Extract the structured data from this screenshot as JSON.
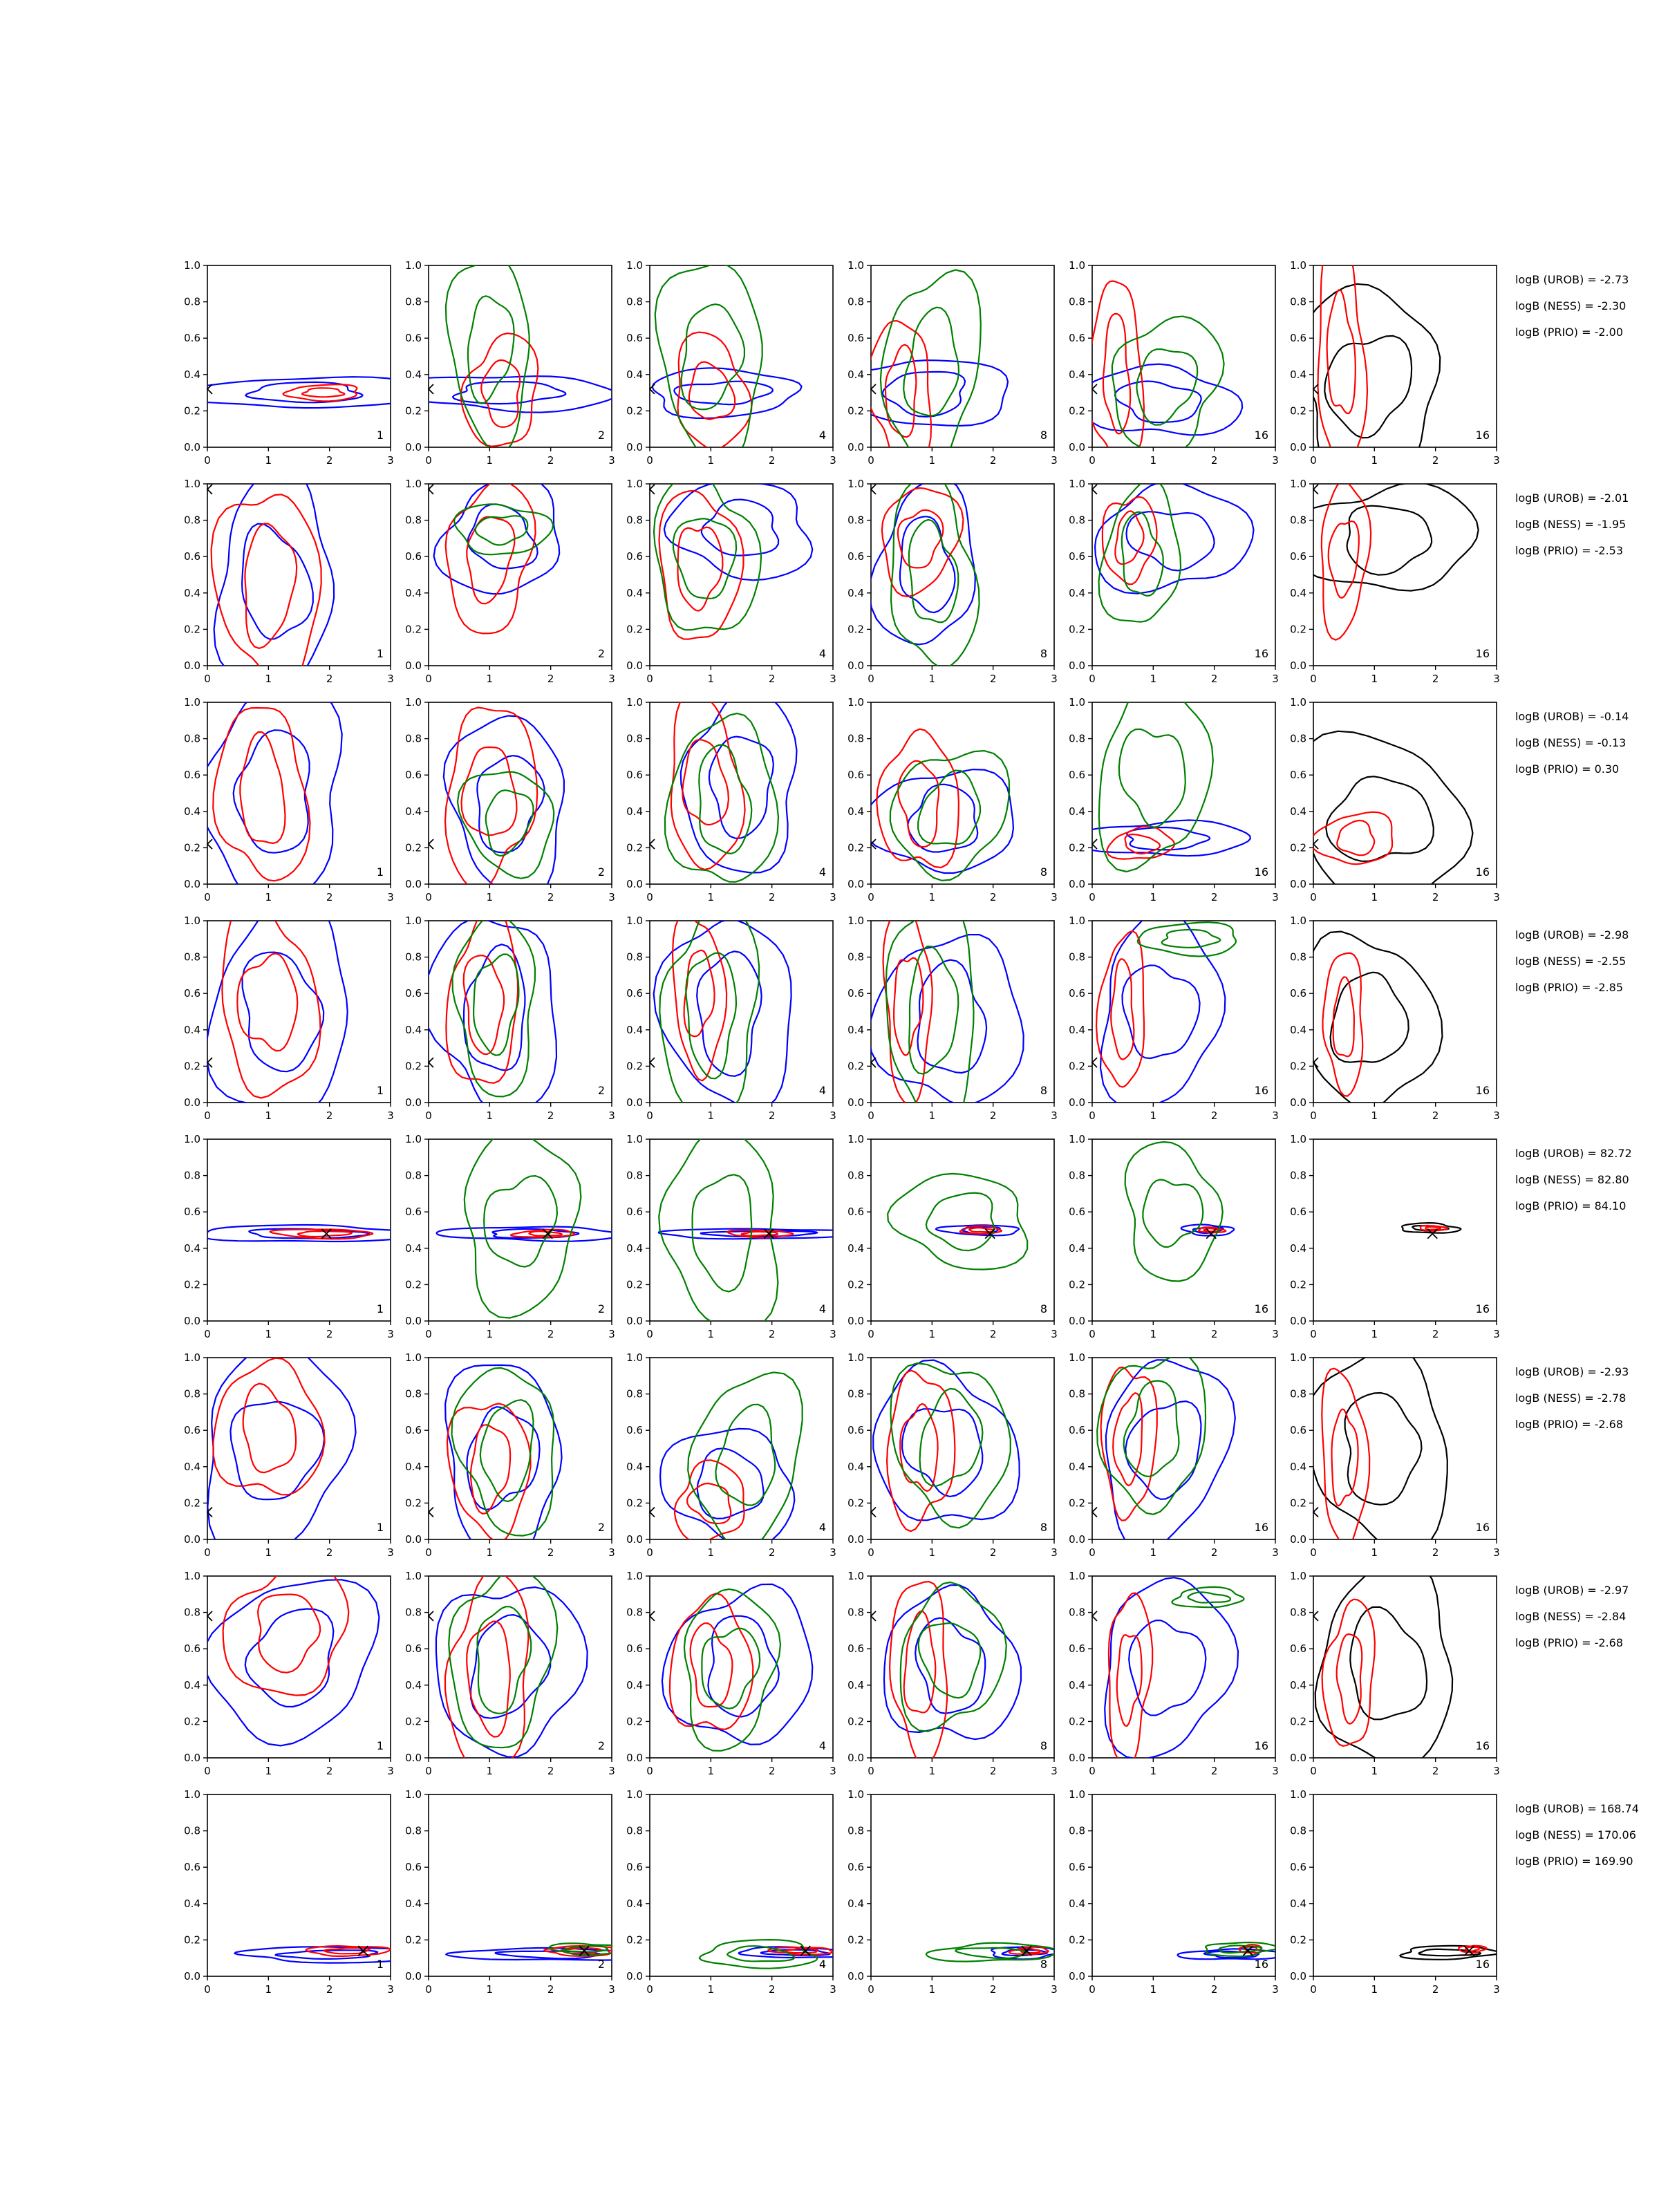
{
  "chart_data": {
    "type": "contour",
    "rows": 8,
    "cols": 6,
    "xlim": [
      0,
      3
    ],
    "ylim": [
      0.0,
      1.0
    ],
    "x_ticks": [
      "0",
      "1",
      "2",
      "3"
    ],
    "y_ticks": [
      "0.0",
      "0.2",
      "0.4",
      "0.6",
      "0.8",
      "1.0"
    ],
    "colors": {
      "blue": "#0000ff",
      "red": "#ff0000",
      "green": "#008000",
      "black": "#000000"
    },
    "column_series": [
      [
        "blue",
        "red"
      ],
      [
        "blue",
        "red",
        "green"
      ],
      [
        "blue",
        "red",
        "green"
      ],
      [
        "blue",
        "red",
        "green"
      ],
      [
        "blue",
        "red",
        "green"
      ],
      [
        "black",
        "red"
      ]
    ],
    "panel_labels": [
      "1",
      "2",
      "4",
      "8",
      "16",
      "16"
    ],
    "truth_markers": [
      {
        "x": 0.0,
        "y": 0.32,
        "style": "edge"
      },
      {
        "x": 0.0,
        "y": 0.97,
        "style": "edge"
      },
      {
        "x": 0.0,
        "y": 0.22,
        "style": "edge"
      },
      {
        "x": 0.0,
        "y": 0.22,
        "style": "edge"
      },
      {
        "x": 1.95,
        "y": 0.48,
        "style": "cross"
      },
      {
        "x": 0.0,
        "y": 0.15,
        "style": "edge"
      },
      {
        "x": 0.0,
        "y": 0.78,
        "style": "edge"
      },
      {
        "x": 2.55,
        "y": 0.14,
        "style": "cross"
      }
    ],
    "evidence": [
      [
        "logB (UROB) = -2.73",
        "logB (NESS) = -2.30",
        "logB (PRIO) = -2.00"
      ],
      [
        "logB (UROB) = -2.01",
        "logB (NESS) = -1.95",
        "logB (PRIO) = -2.53"
      ],
      [
        "logB (UROB) = -0.14",
        "logB (NESS) = -0.13",
        "logB (PRIO) = 0.30"
      ],
      [
        "logB (UROB) = -2.98",
        "logB (NESS) = -2.55",
        "logB (PRIO) = -2.85"
      ],
      [
        "logB (UROB) = 82.72",
        "logB (NESS) = 82.80",
        "logB (PRIO) = 84.10"
      ],
      [
        "logB (UROB) = -2.93",
        "logB (NESS) = -2.78",
        "logB (PRIO) = -2.68"
      ],
      [
        "logB (UROB) = -2.97",
        "logB (NESS) = -2.84",
        "logB (PRIO) = -2.68"
      ],
      [
        "logB (UROB) = 168.74",
        "logB (NESS) = 170.06",
        "logB (PRIO) = 169.90"
      ]
    ],
    "posteriors": [
      [
        [
          {
            "cx": 1.6,
            "cy": 0.3,
            "sx": 1.8,
            "sy": 0.09
          },
          {
            "cx": 1.9,
            "cy": 0.3,
            "sx": 0.65,
            "sy": 0.04
          }
        ],
        [
          {
            "cx": 1.3,
            "cy": 0.3,
            "sx": 1.7,
            "sy": 0.1
          },
          {
            "cx": 1.2,
            "cy": 0.3,
            "sx": 0.6,
            "sy": 0.3
          },
          {
            "cx": 1.0,
            "cy": 0.55,
            "sx": 0.7,
            "sy": 0.48
          }
        ],
        [
          {
            "cx": 1.2,
            "cy": 0.3,
            "sx": 1.3,
            "sy": 0.12
          },
          {
            "cx": 1.0,
            "cy": 0.3,
            "sx": 0.6,
            "sy": 0.3
          },
          {
            "cx": 1.0,
            "cy": 0.5,
            "sx": 0.9,
            "sy": 0.5
          }
        ],
        [
          {
            "cx": 0.9,
            "cy": 0.3,
            "sx": 1.3,
            "sy": 0.2
          },
          {
            "cx": 0.5,
            "cy": 0.3,
            "sx": 0.5,
            "sy": 0.4
          },
          {
            "cx": 1.0,
            "cy": 0.45,
            "sx": 0.8,
            "sy": 0.5
          }
        ],
        [
          {
            "cx": 1.1,
            "cy": 0.25,
            "sx": 1.2,
            "sy": 0.2
          },
          {
            "cx": 0.4,
            "cy": 0.4,
            "sx": 0.4,
            "sy": 0.55
          },
          {
            "cx": 1.2,
            "cy": 0.35,
            "sx": 0.9,
            "sy": 0.35
          }
        ],
        [
          {
            "cx": 0.9,
            "cy": 0.35,
            "sx": 1.2,
            "sy": 0.5
          },
          {
            "cx": 0.45,
            "cy": 0.5,
            "sx": 0.4,
            "sy": 0.6
          }
        ]
      ],
      [
        [
          {
            "cx": 1.1,
            "cy": 0.45,
            "sx": 1.0,
            "sy": 0.55
          },
          {
            "cx": 1.0,
            "cy": 0.45,
            "sx": 0.8,
            "sy": 0.55
          }
        ],
        [
          {
            "cx": 1.2,
            "cy": 0.7,
            "sx": 1.0,
            "sy": 0.3
          },
          {
            "cx": 1.0,
            "cy": 0.6,
            "sx": 0.7,
            "sy": 0.4
          },
          {
            "cx": 1.2,
            "cy": 0.75,
            "sx": 0.7,
            "sy": 0.15
          }
        ],
        [
          {
            "cx": 1.5,
            "cy": 0.75,
            "sx": 1.2,
            "sy": 0.25
          },
          {
            "cx": 0.8,
            "cy": 0.55,
            "sx": 0.6,
            "sy": 0.45
          },
          {
            "cx": 0.9,
            "cy": 0.6,
            "sx": 0.8,
            "sy": 0.45
          }
        ],
        [
          {
            "cx": 0.9,
            "cy": 0.55,
            "sx": 0.8,
            "sy": 0.45
          },
          {
            "cx": 0.8,
            "cy": 0.7,
            "sx": 0.6,
            "sy": 0.3
          },
          {
            "cx": 1.0,
            "cy": 0.5,
            "sx": 0.7,
            "sy": 0.5
          }
        ],
        [
          {
            "cx": 1.3,
            "cy": 0.7,
            "sx": 1.2,
            "sy": 0.3
          },
          {
            "cx": 0.6,
            "cy": 0.7,
            "sx": 0.4,
            "sy": 0.25
          },
          {
            "cx": 0.8,
            "cy": 0.6,
            "sx": 0.6,
            "sy": 0.4
          }
        ],
        [
          {
            "cx": 1.2,
            "cy": 0.7,
            "sx": 1.4,
            "sy": 0.3
          },
          {
            "cx": 0.5,
            "cy": 0.6,
            "sx": 0.4,
            "sy": 0.4
          }
        ]
      ],
      [
        [
          {
            "cx": 1.1,
            "cy": 0.5,
            "sx": 1.2,
            "sy": 0.55
          },
          {
            "cx": 0.9,
            "cy": 0.5,
            "sx": 0.7,
            "sy": 0.5
          }
        ],
        [
          {
            "cx": 1.3,
            "cy": 0.45,
            "sx": 1.0,
            "sy": 0.45
          },
          {
            "cx": 1.0,
            "cy": 0.5,
            "sx": 0.7,
            "sy": 0.5
          },
          {
            "cx": 1.3,
            "cy": 0.35,
            "sx": 0.7,
            "sy": 0.3
          }
        ],
        [
          {
            "cx": 1.5,
            "cy": 0.55,
            "sx": 1.0,
            "sy": 0.45
          },
          {
            "cx": 0.9,
            "cy": 0.55,
            "sx": 0.6,
            "sy": 0.45
          },
          {
            "cx": 1.2,
            "cy": 0.45,
            "sx": 0.8,
            "sy": 0.5
          }
        ],
        [
          {
            "cx": 1.2,
            "cy": 0.35,
            "sx": 1.1,
            "sy": 0.3
          },
          {
            "cx": 0.8,
            "cy": 0.45,
            "sx": 0.6,
            "sy": 0.4
          },
          {
            "cx": 1.3,
            "cy": 0.4,
            "sx": 0.9,
            "sy": 0.35
          }
        ],
        [
          {
            "cx": 1.2,
            "cy": 0.25,
            "sx": 1.3,
            "sy": 0.1
          },
          {
            "cx": 0.8,
            "cy": 0.22,
            "sx": 0.5,
            "sy": 0.09
          },
          {
            "cx": 1.0,
            "cy": 0.6,
            "sx": 0.9,
            "sy": 0.5
          }
        ],
        [
          {
            "cx": 1.1,
            "cy": 0.35,
            "sx": 1.4,
            "sy": 0.45
          },
          {
            "cx": 0.7,
            "cy": 0.25,
            "sx": 0.6,
            "sy": 0.15
          }
        ]
      ],
      [
        [
          {
            "cx": 1.2,
            "cy": 0.5,
            "sx": 1.2,
            "sy": 0.55
          },
          {
            "cx": 1.0,
            "cy": 0.55,
            "sx": 0.8,
            "sy": 0.5
          }
        ],
        [
          {
            "cx": 1.1,
            "cy": 0.5,
            "sx": 1.0,
            "sy": 0.55
          },
          {
            "cx": 0.9,
            "cy": 0.55,
            "sx": 0.6,
            "sy": 0.45
          },
          {
            "cx": 1.1,
            "cy": 0.55,
            "sx": 0.7,
            "sy": 0.45
          }
        ],
        [
          {
            "cx": 1.3,
            "cy": 0.5,
            "sx": 1.0,
            "sy": 0.55
          },
          {
            "cx": 0.8,
            "cy": 0.6,
            "sx": 0.4,
            "sy": 0.45
          },
          {
            "cx": 1.0,
            "cy": 0.5,
            "sx": 0.8,
            "sy": 0.55
          }
        ],
        [
          {
            "cx": 1.3,
            "cy": 0.45,
            "sx": 1.1,
            "sy": 0.5
          },
          {
            "cx": 0.6,
            "cy": 0.55,
            "sx": 0.4,
            "sy": 0.5
          },
          {
            "cx": 1.0,
            "cy": 0.5,
            "sx": 0.8,
            "sy": 0.55
          }
        ],
        [
          {
            "cx": 1.1,
            "cy": 0.5,
            "sx": 1.0,
            "sy": 0.5
          },
          {
            "cx": 0.5,
            "cy": 0.5,
            "sx": 0.35,
            "sy": 0.45
          },
          {
            "cx": 1.6,
            "cy": 0.9,
            "sx": 0.9,
            "sy": 0.08
          }
        ],
        [
          {
            "cx": 0.9,
            "cy": 0.45,
            "sx": 1.0,
            "sy": 0.5
          },
          {
            "cx": 0.5,
            "cy": 0.45,
            "sx": 0.35,
            "sy": 0.35
          }
        ]
      ],
      [
        [
          {
            "cx": 1.6,
            "cy": 0.48,
            "sx": 1.6,
            "sy": 0.05
          },
          {
            "cx": 1.9,
            "cy": 0.48,
            "sx": 0.8,
            "sy": 0.025
          }
        ],
        [
          {
            "cx": 1.7,
            "cy": 0.48,
            "sx": 1.4,
            "sy": 0.04
          },
          {
            "cx": 1.9,
            "cy": 0.48,
            "sx": 0.5,
            "sy": 0.02
          },
          {
            "cx": 1.5,
            "cy": 0.55,
            "sx": 1.0,
            "sy": 0.45
          }
        ],
        [
          {
            "cx": 1.8,
            "cy": 0.48,
            "sx": 1.5,
            "sy": 0.03
          },
          {
            "cx": 1.8,
            "cy": 0.48,
            "sx": 0.5,
            "sy": 0.02
          },
          {
            "cx": 1.2,
            "cy": 0.5,
            "sx": 1.0,
            "sy": 0.5
          }
        ],
        [
          {
            "cx": 1.8,
            "cy": 0.5,
            "sx": 0.6,
            "sy": 0.03
          },
          {
            "cx": 1.8,
            "cy": 0.5,
            "sx": 0.35,
            "sy": 0.02
          },
          {
            "cx": 1.5,
            "cy": 0.55,
            "sx": 1.1,
            "sy": 0.25
          }
        ],
        [
          {
            "cx": 1.9,
            "cy": 0.5,
            "sx": 0.4,
            "sy": 0.03
          },
          {
            "cx": 1.95,
            "cy": 0.5,
            "sx": 0.2,
            "sy": 0.015
          },
          {
            "cx": 1.3,
            "cy": 0.6,
            "sx": 0.8,
            "sy": 0.35
          }
        ],
        [
          {
            "cx": 1.9,
            "cy": 0.51,
            "sx": 0.5,
            "sy": 0.025
          },
          {
            "cx": 1.95,
            "cy": 0.51,
            "sx": 0.2,
            "sy": 0.015
          }
        ]
      ],
      [
        [
          {
            "cx": 1.1,
            "cy": 0.5,
            "sx": 1.2,
            "sy": 0.55
          },
          {
            "cx": 1.0,
            "cy": 0.6,
            "sx": 0.8,
            "sy": 0.4
          }
        ],
        [
          {
            "cx": 1.2,
            "cy": 0.45,
            "sx": 1.0,
            "sy": 0.5
          },
          {
            "cx": 1.0,
            "cy": 0.4,
            "sx": 0.6,
            "sy": 0.4
          },
          {
            "cx": 1.3,
            "cy": 0.5,
            "sx": 0.8,
            "sy": 0.45
          }
        ],
        [
          {
            "cx": 1.3,
            "cy": 0.3,
            "sx": 1.1,
            "sy": 0.3
          },
          {
            "cx": 1.0,
            "cy": 0.2,
            "sx": 0.6,
            "sy": 0.2
          },
          {
            "cx": 1.6,
            "cy": 0.45,
            "sx": 0.9,
            "sy": 0.45
          }
        ],
        [
          {
            "cx": 1.2,
            "cy": 0.5,
            "sx": 1.1,
            "sy": 0.45
          },
          {
            "cx": 0.8,
            "cy": 0.5,
            "sx": 0.5,
            "sy": 0.45
          },
          {
            "cx": 1.3,
            "cy": 0.55,
            "sx": 0.9,
            "sy": 0.45
          }
        ],
        [
          {
            "cx": 1.2,
            "cy": 0.5,
            "sx": 1.0,
            "sy": 0.5
          },
          {
            "cx": 0.6,
            "cy": 0.55,
            "sx": 0.4,
            "sy": 0.45
          },
          {
            "cx": 1.0,
            "cy": 0.6,
            "sx": 0.8,
            "sy": 0.45
          }
        ],
        [
          {
            "cx": 1.1,
            "cy": 0.5,
            "sx": 1.2,
            "sy": 0.5
          },
          {
            "cx": 0.5,
            "cy": 0.45,
            "sx": 0.35,
            "sy": 0.5
          }
        ]
      ],
      [
        [
          {
            "cx": 1.4,
            "cy": 0.55,
            "sx": 1.3,
            "sy": 0.45
          },
          {
            "cx": 1.3,
            "cy": 0.7,
            "sx": 1.0,
            "sy": 0.35
          }
        ],
        [
          {
            "cx": 1.3,
            "cy": 0.5,
            "sx": 1.1,
            "sy": 0.5
          },
          {
            "cx": 1.0,
            "cy": 0.45,
            "sx": 0.7,
            "sy": 0.5
          },
          {
            "cx": 1.2,
            "cy": 0.55,
            "sx": 0.8,
            "sy": 0.5
          }
        ],
        [
          {
            "cx": 1.5,
            "cy": 0.5,
            "sx": 1.1,
            "sy": 0.45
          },
          {
            "cx": 1.0,
            "cy": 0.5,
            "sx": 0.6,
            "sy": 0.4
          },
          {
            "cx": 1.3,
            "cy": 0.5,
            "sx": 0.8,
            "sy": 0.4
          }
        ],
        [
          {
            "cx": 1.3,
            "cy": 0.5,
            "sx": 1.0,
            "sy": 0.45
          },
          {
            "cx": 0.8,
            "cy": 0.5,
            "sx": 0.5,
            "sy": 0.45
          },
          {
            "cx": 1.3,
            "cy": 0.55,
            "sx": 0.8,
            "sy": 0.4
          }
        ],
        [
          {
            "cx": 1.2,
            "cy": 0.5,
            "sx": 1.0,
            "sy": 0.5
          },
          {
            "cx": 0.6,
            "cy": 0.45,
            "sx": 0.35,
            "sy": 0.45
          },
          {
            "cx": 1.9,
            "cy": 0.88,
            "sx": 0.6,
            "sy": 0.05
          }
        ],
        [
          {
            "cx": 1.2,
            "cy": 0.5,
            "sx": 1.2,
            "sy": 0.5
          },
          {
            "cx": 0.6,
            "cy": 0.45,
            "sx": 0.4,
            "sy": 0.4
          }
        ]
      ],
      [
        [
          {
            "cx": 2.0,
            "cy": 0.12,
            "sx": 1.5,
            "sy": 0.04
          },
          {
            "cx": 2.3,
            "cy": 0.14,
            "sx": 0.6,
            "sy": 0.03
          }
        ],
        [
          {
            "cx": 2.0,
            "cy": 0.12,
            "sx": 1.5,
            "sy": 0.035
          },
          {
            "cx": 2.5,
            "cy": 0.14,
            "sx": 0.6,
            "sy": 0.025
          },
          {
            "cx": 2.6,
            "cy": 0.15,
            "sx": 0.6,
            "sy": 0.03
          }
        ],
        [
          {
            "cx": 2.4,
            "cy": 0.13,
            "sx": 0.9,
            "sy": 0.03
          },
          {
            "cx": 2.5,
            "cy": 0.14,
            "sx": 0.5,
            "sy": 0.02
          },
          {
            "cx": 1.8,
            "cy": 0.12,
            "sx": 1.0,
            "sy": 0.07
          }
        ],
        [
          {
            "cx": 2.5,
            "cy": 0.13,
            "sx": 0.6,
            "sy": 0.03
          },
          {
            "cx": 2.6,
            "cy": 0.14,
            "sx": 0.3,
            "sy": 0.02
          },
          {
            "cx": 2.0,
            "cy": 0.13,
            "sx": 1.0,
            "sy": 0.05
          }
        ],
        [
          {
            "cx": 2.3,
            "cy": 0.12,
            "sx": 0.8,
            "sy": 0.03
          },
          {
            "cx": 2.6,
            "cy": 0.15,
            "sx": 0.2,
            "sy": 0.02
          },
          {
            "cx": 2.4,
            "cy": 0.15,
            "sx": 0.6,
            "sy": 0.035
          }
        ],
        [
          {
            "cx": 2.2,
            "cy": 0.13,
            "sx": 0.8,
            "sy": 0.035
          },
          {
            "cx": 2.6,
            "cy": 0.15,
            "sx": 0.2,
            "sy": 0.02
          }
        ]
      ]
    ]
  }
}
